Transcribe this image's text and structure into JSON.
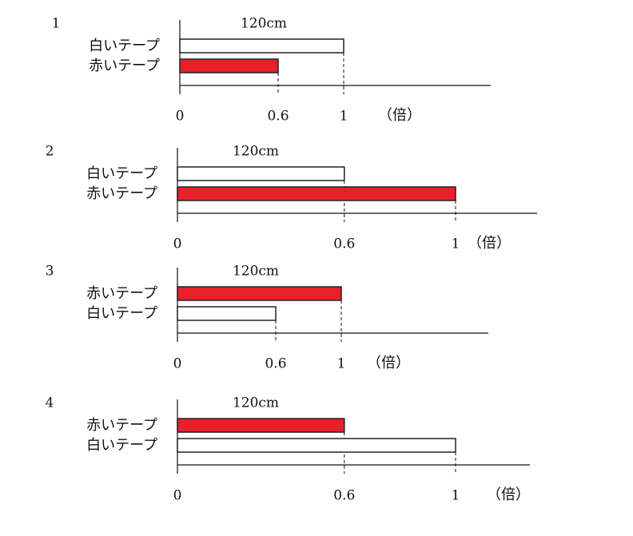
{
  "options": [
    {
      "number": "1",
      "length_label": "120cm",
      "unit": "（倍）",
      "ticks": [
        0,
        0.6,
        1
      ],
      "bars": [
        {
          "label": "白いテープ",
          "color": "#ffffff",
          "value": 1
        },
        {
          "label": "赤いテープ",
          "color": "#e8202a",
          "value": 0.6
        }
      ]
    },
    {
      "number": "2",
      "length_label": "120cm",
      "unit": "（倍）",
      "ticks": [
        0,
        0.6,
        1
      ],
      "bars": [
        {
          "label": "白いテープ",
          "color": "#ffffff",
          "value": 0.6
        },
        {
          "label": "赤いテープ",
          "color": "#e8202a",
          "value": 1
        }
      ]
    },
    {
      "number": "3",
      "length_label": "120cm",
      "unit": "（倍）",
      "ticks": [
        0,
        0.6,
        1
      ],
      "bars": [
        {
          "label": "赤いテープ",
          "color": "#e8202a",
          "value": 1
        },
        {
          "label": "白いテープ",
          "color": "#ffffff",
          "value": 0.6
        }
      ]
    },
    {
      "number": "4",
      "length_label": "120cm",
      "unit": "（倍）",
      "ticks": [
        0,
        0.6,
        1
      ],
      "bars": [
        {
          "label": "赤いテープ",
          "color": "#e8202a",
          "value": 0.6
        },
        {
          "label": "白いテープ",
          "color": "#ffffff",
          "value": 1
        }
      ]
    }
  ]
}
